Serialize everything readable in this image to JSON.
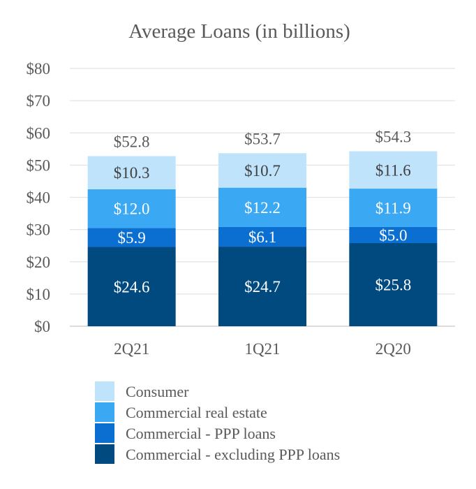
{
  "chart_data": {
    "type": "bar",
    "stacked": true,
    "title": "Average Loans (in billions)",
    "categories": [
      "2Q21",
      "1Q21",
      "2Q20"
    ],
    "y_tick_labels": [
      "$0",
      "$10",
      "$20",
      "$30",
      "$40",
      "$50",
      "$60",
      "$70",
      "$80"
    ],
    "ylim": [
      0,
      80
    ],
    "grid": true,
    "legend_placement": "bottom",
    "series": [
      {
        "name": "Commercial - excluding PPP loans",
        "color": "#004a80",
        "label_color": "#ffffff",
        "values": [
          24.6,
          24.7,
          25.8
        ],
        "labels": [
          "$24.6",
          "$24.7",
          "$25.8"
        ]
      },
      {
        "name": "Commercial - PPP loans",
        "color": "#0a6fd1",
        "label_color": "#ffffff",
        "values": [
          5.9,
          6.1,
          5.0
        ],
        "labels": [
          "$5.9",
          "$6.1",
          "$5.0"
        ]
      },
      {
        "name": "Commercial real estate",
        "color": "#3aa8f2",
        "label_color": "#ffffff",
        "values": [
          12.0,
          12.2,
          11.9
        ],
        "labels": [
          "$12.0",
          "$12.2",
          "$11.9"
        ]
      },
      {
        "name": "Consumer",
        "color": "#bfe3fb",
        "label_color": "#404040",
        "values": [
          10.3,
          10.7,
          11.6
        ],
        "labels": [
          "$10.3",
          "$10.7",
          "$11.6"
        ]
      }
    ],
    "totals": [
      52.8,
      53.7,
      54.3
    ],
    "total_labels": [
      "$52.8",
      "$53.7",
      "$54.3"
    ],
    "legend_order": [
      "Consumer",
      "Commercial real estate",
      "Commercial - PPP loans",
      "Commercial - excluding PPP loans"
    ]
  }
}
